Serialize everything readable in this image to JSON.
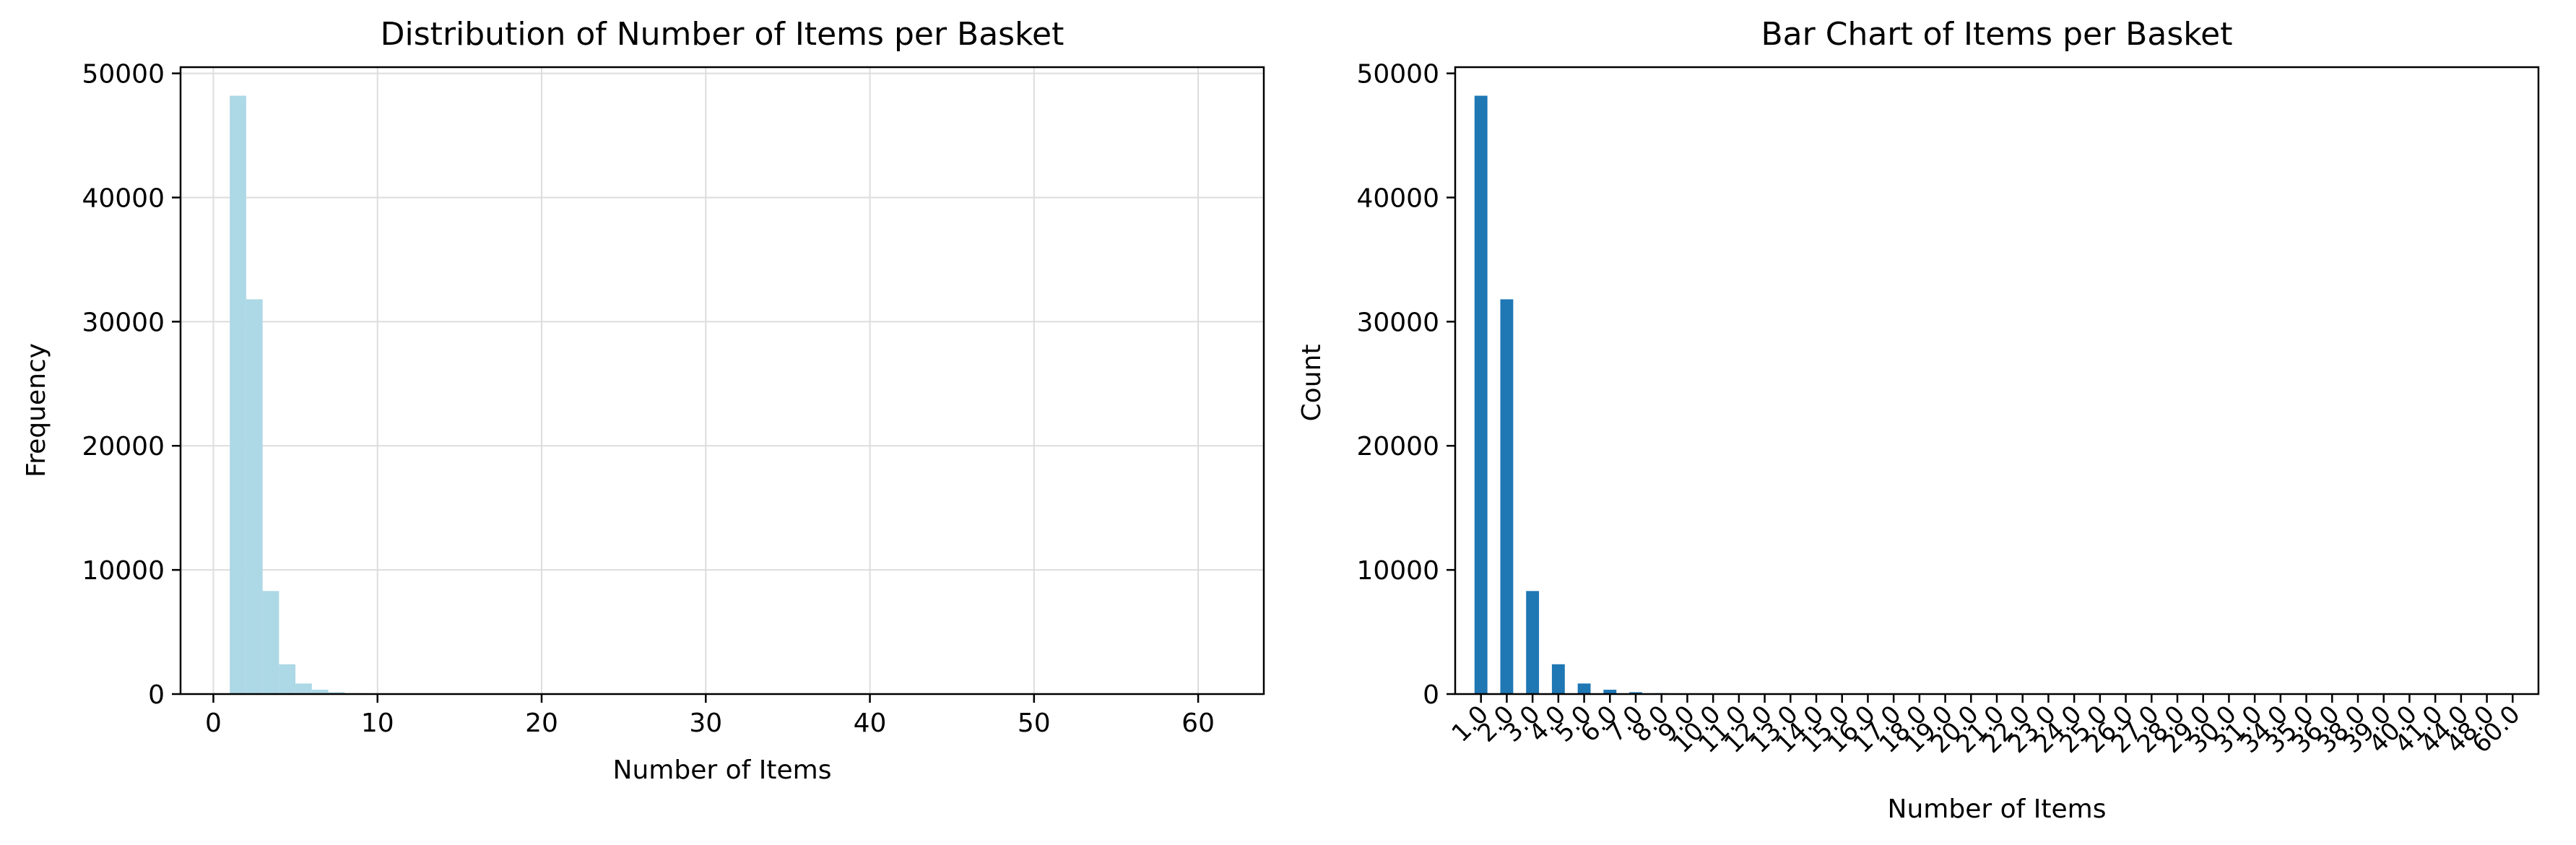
{
  "colors": {
    "hist_fill": "#add8e6",
    "bar_fill": "#1f77b4",
    "grid": "#dddddd",
    "axis": "#000000"
  },
  "chart_data": [
    {
      "type": "bar",
      "title": "Distribution of Number of Items per Basket",
      "xlabel": "Number of Items",
      "ylabel": "Frequency",
      "xlim": [
        -2,
        64
      ],
      "ylim": [
        0,
        50500
      ],
      "xticks": [
        0,
        10,
        20,
        30,
        40,
        50,
        60
      ],
      "yticks": [
        0,
        10000,
        20000,
        30000,
        40000,
        50000
      ],
      "grid": true,
      "bins": [
        {
          "x0": 1.0,
          "x1": 2.0,
          "value": 48200
        },
        {
          "x0": 2.0,
          "x1": 3.0,
          "value": 31800
        },
        {
          "x0": 3.0,
          "x1": 4.0,
          "value": 8300
        },
        {
          "x0": 4.0,
          "x1": 5.0,
          "value": 2400
        },
        {
          "x0": 5.0,
          "x1": 6.0,
          "value": 850
        },
        {
          "x0": 6.0,
          "x1": 7.0,
          "value": 350
        },
        {
          "x0": 7.0,
          "x1": 8.0,
          "value": 150
        },
        {
          "x0": 8.0,
          "x1": 9.0,
          "value": 70
        },
        {
          "x0": 9.0,
          "x1": 10.0,
          "value": 40
        },
        {
          "x0": 10.0,
          "x1": 11.0,
          "value": 25
        },
        {
          "x0": 11.0,
          "x1": 12.0,
          "value": 15
        },
        {
          "x0": 12.0,
          "x1": 13.0,
          "value": 10
        },
        {
          "x0": 13.0,
          "x1": 14.0,
          "value": 6
        },
        {
          "x0": 14.0,
          "x1": 15.0,
          "value": 5
        },
        {
          "x0": 15.0,
          "x1": 16.0,
          "value": 4
        }
      ]
    },
    {
      "type": "bar",
      "title": "Bar Chart of Items per Basket",
      "xlabel": "Number of Items",
      "ylabel": "Count",
      "ylim": [
        0,
        50500
      ],
      "yticks": [
        0,
        10000,
        20000,
        30000,
        40000,
        50000
      ],
      "grid": false,
      "categories": [
        "1.0",
        "2.0",
        "3.0",
        "4.0",
        "5.0",
        "6.0",
        "7.0",
        "8.0",
        "9.0",
        "10.0",
        "11.0",
        "12.0",
        "13.0",
        "14.0",
        "15.0",
        "16.0",
        "17.0",
        "18.0",
        "19.0",
        "20.0",
        "21.0",
        "22.0",
        "23.0",
        "24.0",
        "25.0",
        "26.0",
        "27.0",
        "28.0",
        "29.0",
        "30.0",
        "31.0",
        "34.0",
        "35.0",
        "36.0",
        "38.0",
        "39.0",
        "40.0",
        "41.0",
        "44.0",
        "48.0",
        "60.0"
      ],
      "values": [
        48200,
        31800,
        8300,
        2400,
        850,
        350,
        150,
        70,
        40,
        25,
        15,
        10,
        6,
        5,
        4,
        3,
        3,
        2,
        2,
        2,
        1,
        1,
        1,
        1,
        1,
        1,
        1,
        1,
        1,
        1,
        1,
        1,
        1,
        1,
        1,
        1,
        1,
        1,
        1,
        1,
        1
      ]
    }
  ]
}
